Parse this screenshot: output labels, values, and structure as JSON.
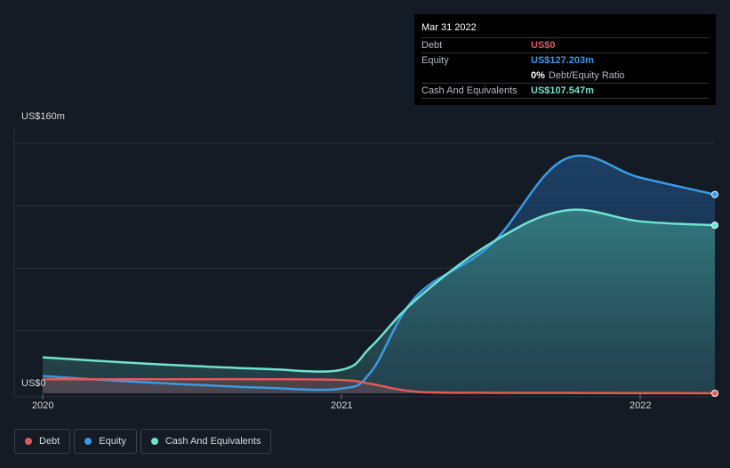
{
  "tooltip": {
    "date": "Mar 31 2022",
    "rows": [
      {
        "label": "Debt",
        "value": "US$0",
        "color": "#e05a5a"
      },
      {
        "label": "Equity",
        "value": "US$127.203m",
        "color": "#3a9ae6"
      },
      {
        "label": "",
        "value": "0%",
        "suffix": "Debt/Equity Ratio",
        "color": "#ffffff"
      },
      {
        "label": "Cash And Equivalents",
        "value": "US$107.547m",
        "color": "#6fe3d0"
      }
    ]
  },
  "legend": [
    {
      "label": "Debt",
      "color": "#e05a5a"
    },
    {
      "label": "Equity",
      "color": "#3a9ae6"
    },
    {
      "label": "Cash And Equivalents",
      "color": "#6fe3d0"
    }
  ],
  "chart_data": {
    "type": "area",
    "y_top_label": "US$160m",
    "y_bottom_label": "US$0",
    "ylim": [
      0,
      160
    ],
    "xlim": [
      2020.0,
      2022.25
    ],
    "x_ticks": [
      {
        "value": 2020.0,
        "label": "2020"
      },
      {
        "value": 2021.0,
        "label": "2021"
      },
      {
        "value": 2022.0,
        "label": "2022"
      }
    ],
    "grid": true,
    "series": [
      {
        "name": "Debt",
        "color": "#e05a5a",
        "x": [
          2020.0,
          2020.25,
          2020.5,
          2020.75,
          2021.0,
          2021.1,
          2021.25,
          2021.5,
          2021.75,
          2022.0,
          2022.25
        ],
        "y": [
          9,
          9,
          9,
          9,
          8.5,
          6,
          1,
          0.3,
          0.2,
          0.1,
          0
        ]
      },
      {
        "name": "Equity",
        "color": "#3a9ae6",
        "x": [
          2020.0,
          2020.25,
          2020.5,
          2020.75,
          2021.0,
          2021.1,
          2021.25,
          2021.5,
          2021.75,
          2022.0,
          2022.25
        ],
        "y": [
          11,
          8,
          5.5,
          3.5,
          3,
          14,
          62,
          95,
          150,
          138,
          127.203
        ]
      },
      {
        "name": "Cash And Equivalents",
        "color": "#6fe3d0",
        "x": [
          2020.0,
          2020.25,
          2020.5,
          2020.75,
          2021.0,
          2021.1,
          2021.25,
          2021.5,
          2021.75,
          2022.0,
          2022.25
        ],
        "y": [
          23,
          20,
          17.5,
          15.5,
          15,
          30,
          60,
          96,
          117,
          110,
          107.547
        ]
      }
    ]
  }
}
